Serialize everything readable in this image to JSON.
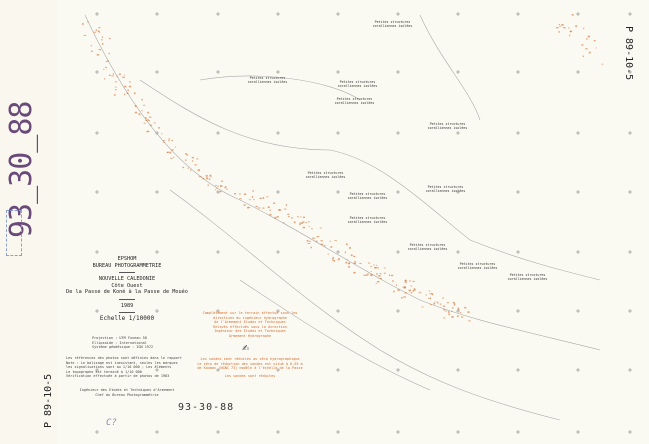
{
  "left_margin": {
    "sheet_number": "93_30_88",
    "photo_ref": "P 89-10-5"
  },
  "right_margin": {
    "photo_ref": "P 89-10-5"
  },
  "cartouche": {
    "organization": [
      "EPSHOM",
      "BUREAU PHOTOGRAMMETRIE"
    ],
    "region": "NOUVELLE CALEDONIE",
    "coast": "Côte Ouest",
    "extent": "De la Passe de Koné à la Passe de Mouéo",
    "year": "1989",
    "scale": "Echelle 1/10000",
    "specs": [
      {
        "label": "Projection",
        "value": "UTM Fuseau 58"
      },
      {
        "label": "Ellipsoide",
        "value": "International"
      },
      {
        "label": "Système géodésique",
        "value": "IGN 1972"
      }
    ],
    "notes": [
      "Les références des photos sont définies dans le rapport",
      "Note : Le balisage est inexistant, seules les marques",
      "les signalisations sont au 1/10 000 ; Les éléments",
      "Le topographe est terminé à 1/10 000",
      "Vérification effectuée à partir de photos de 1983"
    ],
    "credit": [
      "Ingénieur des Etudes et Techniques d'Armement",
      "Chef du Bureau Photogrammétrie"
    ],
    "initials": "C?"
  },
  "orange_notes": [
    "Complètement sur le terrain effectué sous les",
    "directives du ingénieur hydrographe",
    "de l'Armement Etudes et Techniques",
    "Relevés effectués sous la direction",
    "Ingénieur des Etudes et Techniques",
    "Armement Hydrographe"
  ],
  "red_notes": [
    "Les sondes sont réduites au zéro hydrographique",
    "Le zéro de réduction des sondes est situé à 0,55 m",
    "de Koumac (NGNC 73) modèle à l'échelle de la Passe"
  ],
  "red_footer": "Les sondes sont réduites",
  "reference_number": "93-30-88",
  "map_labels": [
    {
      "text": "Petites structures coralliennes isolées"
    },
    {
      "text": "Petites structures coralliennes isolées"
    },
    {
      "text": "Petites structures coralliennes isolées"
    },
    {
      "text": "Petites structures coralliennes isolées"
    },
    {
      "text": "Petites structures coralliennes isolées"
    },
    {
      "text": "Petites structures coralliennes isolées"
    },
    {
      "text": "Petites structures coralliennes isolées"
    },
    {
      "text": "Petites structures coralliennes isolées"
    },
    {
      "text": "Petites structures coralliennes isolées"
    },
    {
      "text": "Petites structures coralliennes isolées"
    },
    {
      "text": "Petites structures coralliennes isolées"
    },
    {
      "text": "Petites structures coralliennes isolées"
    }
  ],
  "colors": {
    "paper": "#fbfaf2",
    "reef": "#d46a2e",
    "contour": "#9a9a9a",
    "sheet_number": "#6a4a7a"
  }
}
